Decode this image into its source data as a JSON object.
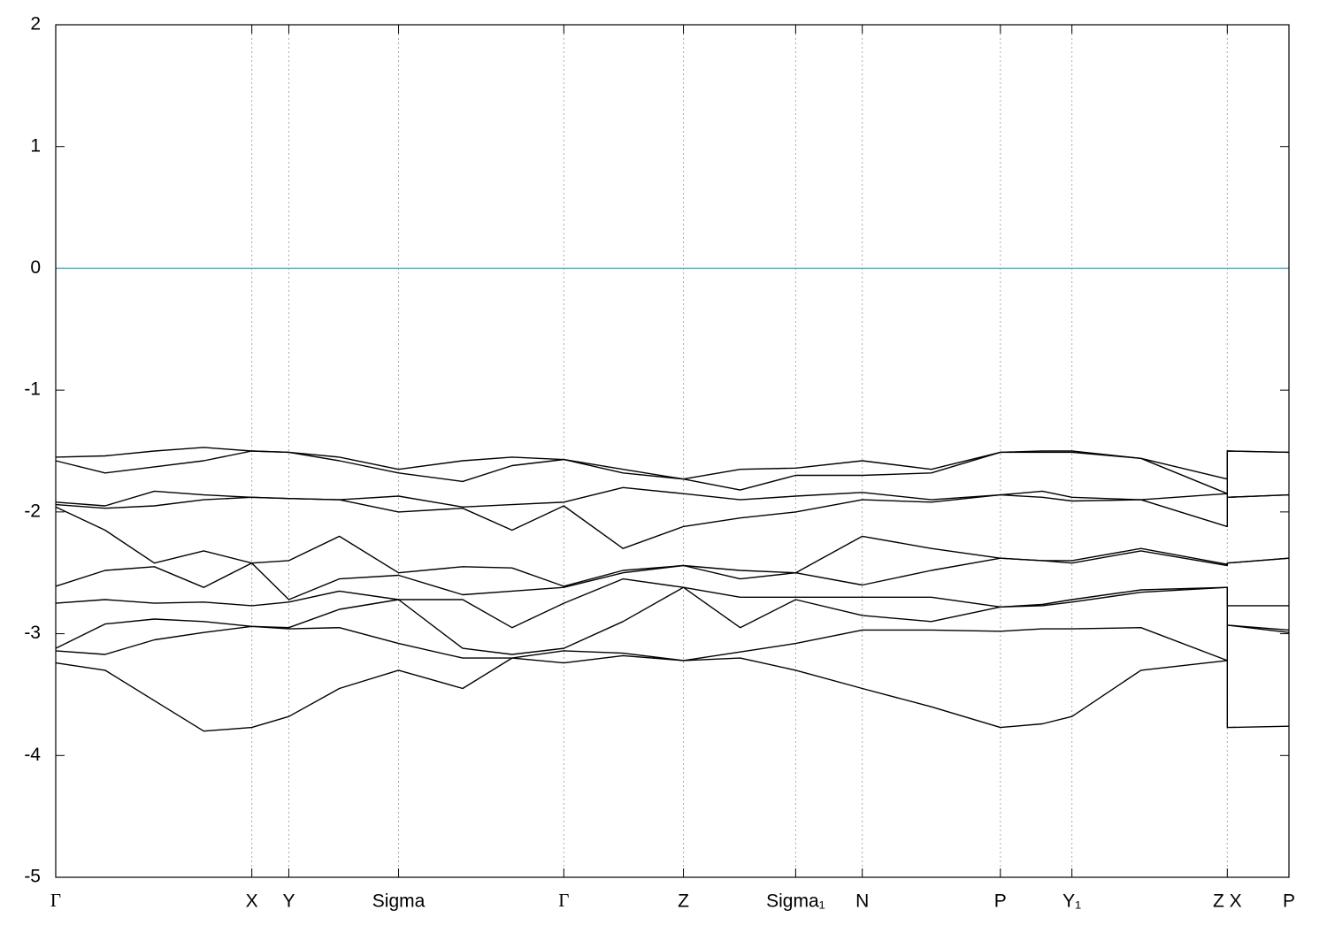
{
  "chart_data": {
    "type": "line",
    "x": [
      0,
      0.04,
      0.08,
      0.12,
      0.159,
      0.189,
      0.23,
      0.278,
      0.33,
      0.37,
      0.412,
      0.46,
      0.509,
      0.555,
      0.6,
      0.654,
      0.71,
      0.766,
      0.8,
      0.824,
      0.88,
      0.95,
      0.95,
      1.0
    ],
    "series": [
      {
        "color": "#000000",
        "values": [
          -1.55,
          -1.54,
          -1.5,
          -1.47,
          -1.5,
          -1.51,
          -1.55,
          -1.65,
          -1.58,
          -1.55,
          -1.57,
          -1.65,
          -1.73,
          -1.65,
          -1.64,
          -1.58,
          -1.65,
          -1.51,
          -1.5,
          -1.5,
          -1.56,
          -1.73,
          -1.5,
          -1.51
        ]
      },
      {
        "color": "#000000",
        "values": [
          -1.58,
          -1.68,
          -1.63,
          -1.58,
          -1.5,
          -1.51,
          -1.58,
          -1.68,
          -1.75,
          -1.62,
          -1.57,
          -1.68,
          -1.73,
          -1.82,
          -1.7,
          -1.7,
          -1.68,
          -1.51,
          -1.51,
          -1.51,
          -1.56,
          -1.85,
          -1.5,
          -1.51
        ]
      },
      {
        "color": "#000000",
        "values": [
          -1.92,
          -1.95,
          -1.83,
          -1.86,
          -1.88,
          -1.89,
          -1.9,
          -1.87,
          -1.96,
          -1.94,
          -1.92,
          -1.8,
          -1.85,
          -1.9,
          -1.87,
          -1.84,
          -1.9,
          -1.86,
          -1.83,
          -1.88,
          -1.9,
          -1.85,
          -1.88,
          -1.86
        ]
      },
      {
        "color": "#000000",
        "values": [
          -1.94,
          -1.97,
          -1.95,
          -1.9,
          -1.88,
          -1.89,
          -1.9,
          -2.0,
          -1.97,
          -2.15,
          -1.95,
          -2.3,
          -2.12,
          -2.05,
          -2.0,
          -1.9,
          -1.92,
          -1.86,
          -1.88,
          -1.91,
          -1.9,
          -2.12,
          -1.88,
          -1.86
        ]
      },
      {
        "color": "#000000",
        "values": [
          -1.96,
          -2.15,
          -2.42,
          -2.32,
          -2.42,
          -2.4,
          -2.2,
          -2.5,
          -2.45,
          -2.46,
          -2.61,
          -2.48,
          -2.44,
          -2.48,
          -2.5,
          -2.2,
          -2.3,
          -2.38,
          -2.4,
          -2.4,
          -2.3,
          -2.43,
          -2.42,
          -2.38
        ]
      },
      {
        "color": "#000000",
        "values": [
          -2.61,
          -2.48,
          -2.45,
          -2.62,
          -2.42,
          -2.72,
          -2.55,
          -2.52,
          -2.68,
          -2.65,
          -2.62,
          -2.5,
          -2.44,
          -2.55,
          -2.5,
          -2.6,
          -2.48,
          -2.38,
          -2.4,
          -2.42,
          -2.32,
          -2.44,
          -2.42,
          -2.38
        ]
      },
      {
        "color": "#000000",
        "values": [
          -2.75,
          -2.72,
          -2.75,
          -2.74,
          -2.77,
          -2.74,
          -2.65,
          -2.72,
          -2.72,
          -2.95,
          -2.75,
          -2.55,
          -2.62,
          -2.7,
          -2.7,
          -2.7,
          -2.7,
          -2.78,
          -2.76,
          -2.72,
          -2.64,
          -2.62,
          -2.77,
          -2.77
        ]
      },
      {
        "color": "#000000",
        "values": [
          -3.12,
          -2.92,
          -2.88,
          -2.9,
          -2.94,
          -2.95,
          -2.8,
          -2.72,
          -3.12,
          -3.17,
          -3.12,
          -2.9,
          -2.62,
          -2.95,
          -2.72,
          -2.85,
          -2.9,
          -2.78,
          -2.77,
          -2.74,
          -2.66,
          -2.62,
          -2.93,
          -2.97
        ]
      },
      {
        "color": "#000000",
        "values": [
          -3.14,
          -3.17,
          -3.05,
          -2.99,
          -2.94,
          -2.96,
          -2.95,
          -3.08,
          -3.2,
          -3.2,
          -3.14,
          -3.16,
          -3.22,
          -3.15,
          -3.08,
          -2.97,
          -2.97,
          -2.98,
          -2.96,
          -2.96,
          -2.95,
          -3.22,
          -2.93,
          -2.99
        ]
      },
      {
        "color": "#000000",
        "values": [
          -3.24,
          -3.3,
          -3.55,
          -3.8,
          -3.77,
          -3.68,
          -3.45,
          -3.3,
          -3.45,
          -3.2,
          -3.24,
          -3.18,
          -3.22,
          -3.2,
          -3.3,
          -3.45,
          -3.6,
          -3.77,
          -3.74,
          -3.68,
          -3.3,
          -3.22,
          -3.77,
          -3.76
        ]
      }
    ],
    "xlim": [
      0,
      1
    ],
    "xticks": [
      {
        "value": 0,
        "label": "Γ"
      },
      {
        "value": 0.159,
        "label": "X"
      },
      {
        "value": 0.189,
        "label": "Y"
      },
      {
        "value": 0.278,
        "label": "Sigma"
      },
      {
        "value": 0.412,
        "label": "Γ"
      },
      {
        "value": 0.509,
        "label": "Z"
      },
      {
        "value": 0.6,
        "label": "Sigma₁"
      },
      {
        "value": 0.654,
        "label": "N"
      },
      {
        "value": 0.766,
        "label": "P"
      },
      {
        "value": 0.824,
        "label": "Y₁"
      },
      {
        "value": 0.95,
        "label": "Z X"
      },
      {
        "value": 1.0,
        "label": "P"
      }
    ],
    "ylim": [
      -5,
      2
    ],
    "yticks": [
      -5,
      -4,
      -3,
      -2,
      -1,
      0,
      1,
      2
    ],
    "fermi_level": 0,
    "fermi_color": "#5ab0c8",
    "grid": true
  }
}
